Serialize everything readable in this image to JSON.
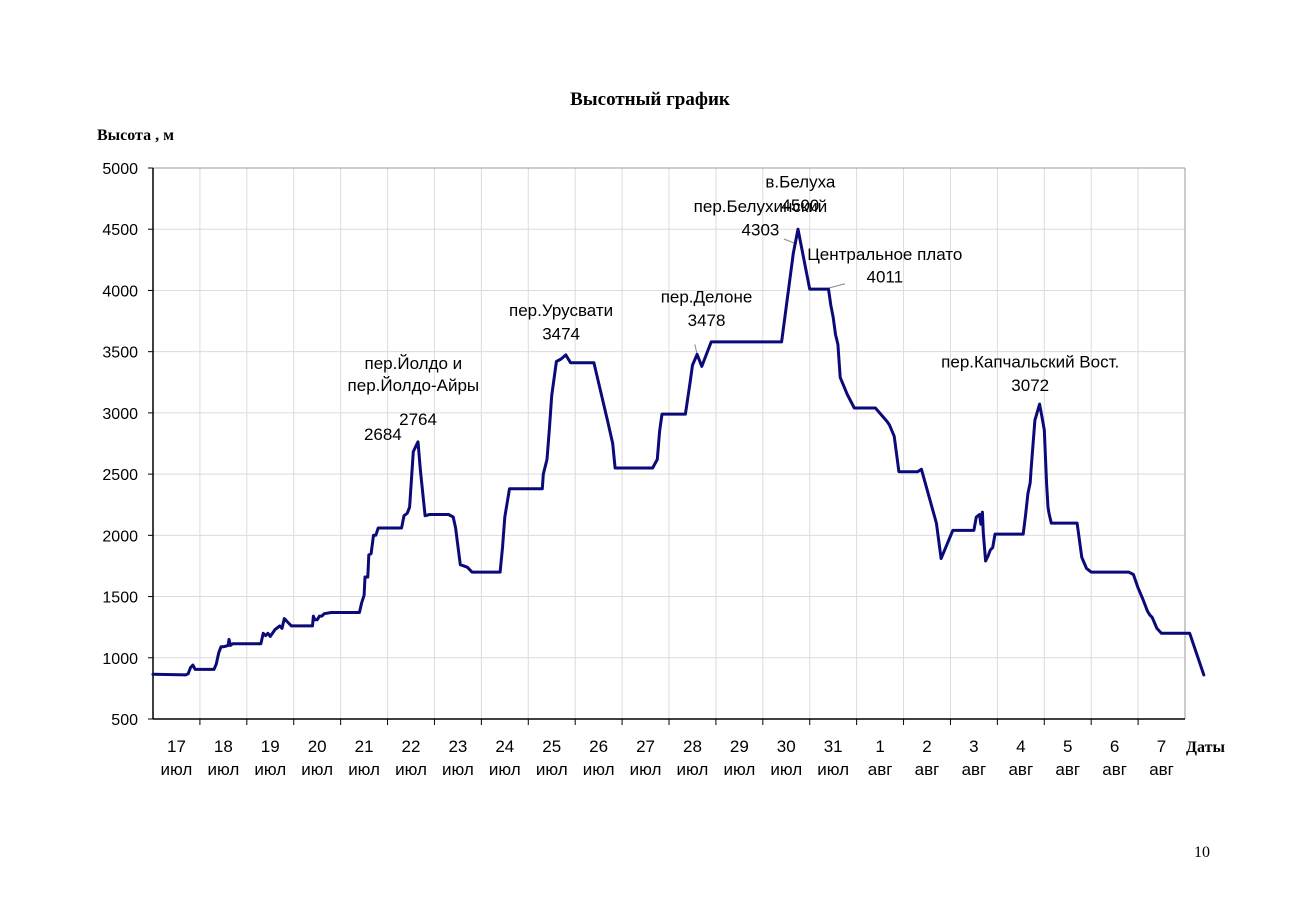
{
  "page_number": "10",
  "chart_data": {
    "type": "line",
    "title": "Высотный график",
    "ylabel": "Высота , м",
    "xlabel": "Даты",
    "ylim": [
      500,
      5000
    ],
    "yticks": [
      "500",
      "1000",
      "1500",
      "2000",
      "2500",
      "3000",
      "3500",
      "4000",
      "4500",
      "5000"
    ],
    "xlim": [
      16.5,
      38.5
    ],
    "grid": true,
    "line_color": "#0a0a78",
    "x_ticks": [
      {
        "day": "17",
        "month": "июл"
      },
      {
        "day": "18",
        "month": "июл"
      },
      {
        "day": "19",
        "month": "июл"
      },
      {
        "day": "20",
        "month": "июл"
      },
      {
        "day": "21",
        "month": "июл"
      },
      {
        "day": "22",
        "month": "июл"
      },
      {
        "day": "23",
        "month": "июл"
      },
      {
        "day": "24",
        "month": "июл"
      },
      {
        "day": "25",
        "month": "июл"
      },
      {
        "day": "26",
        "month": "июл"
      },
      {
        "day": "27",
        "month": "июл"
      },
      {
        "day": "28",
        "month": "июл"
      },
      {
        "day": "29",
        "month": "июл"
      },
      {
        "day": "30",
        "month": "июл"
      },
      {
        "day": "31",
        "month": "июл"
      },
      {
        "day": "1",
        "month": "авг"
      },
      {
        "day": "2",
        "month": "авг"
      },
      {
        "day": "3",
        "month": "авг"
      },
      {
        "day": "4",
        "month": "авг"
      },
      {
        "day": "5",
        "month": "авг"
      },
      {
        "day": "6",
        "month": "авг"
      },
      {
        "day": "7",
        "month": "авг"
      }
    ],
    "series": [
      {
        "values": [
          [
            16.5,
            865
          ],
          [
            17.2,
            860
          ],
          [
            17.25,
            870
          ],
          [
            17.3,
            920
          ],
          [
            17.35,
            940
          ],
          [
            17.4,
            905
          ],
          [
            17.6,
            905
          ],
          [
            17.8,
            905
          ],
          [
            17.85,
            950
          ],
          [
            17.9,
            1040
          ],
          [
            17.95,
            1090
          ],
          [
            18.0,
            1090
          ],
          [
            18.1,
            1100
          ],
          [
            18.12,
            1150
          ],
          [
            18.15,
            1100
          ],
          [
            18.2,
            1115
          ],
          [
            18.8,
            1115
          ],
          [
            18.85,
            1200
          ],
          [
            18.9,
            1180
          ],
          [
            18.95,
            1200
          ],
          [
            19.0,
            1175
          ],
          [
            19.1,
            1230
          ],
          [
            19.2,
            1260
          ],
          [
            19.25,
            1240
          ],
          [
            19.3,
            1320
          ],
          [
            19.4,
            1280
          ],
          [
            19.45,
            1260
          ],
          [
            19.9,
            1260
          ],
          [
            19.92,
            1340
          ],
          [
            19.95,
            1310
          ],
          [
            20.0,
            1310
          ],
          [
            20.05,
            1340
          ],
          [
            20.1,
            1340
          ],
          [
            20.15,
            1360
          ],
          [
            20.3,
            1370
          ],
          [
            20.9,
            1370
          ],
          [
            20.95,
            1450
          ],
          [
            21.0,
            1510
          ],
          [
            21.02,
            1660
          ],
          [
            21.08,
            1660
          ],
          [
            21.1,
            1840
          ],
          [
            21.15,
            1850
          ],
          [
            21.2,
            2000
          ],
          [
            21.25,
            2000
          ],
          [
            21.3,
            2060
          ],
          [
            21.5,
            2060
          ],
          [
            21.7,
            2060
          ],
          [
            21.8,
            2060
          ],
          [
            21.85,
            2160
          ],
          [
            21.92,
            2180
          ],
          [
            21.97,
            2230
          ],
          [
            22.05,
            2684
          ],
          [
            22.15,
            2764
          ],
          [
            22.2,
            2530
          ],
          [
            22.3,
            2160
          ],
          [
            22.4,
            2170
          ],
          [
            22.8,
            2170
          ],
          [
            22.9,
            2150
          ],
          [
            22.95,
            2060
          ],
          [
            23.05,
            1760
          ],
          [
            23.2,
            1740
          ],
          [
            23.3,
            1700
          ],
          [
            23.9,
            1700
          ],
          [
            23.95,
            1900
          ],
          [
            24.0,
            2150
          ],
          [
            24.1,
            2380
          ],
          [
            24.8,
            2380
          ],
          [
            24.82,
            2500
          ],
          [
            24.9,
            2620
          ],
          [
            24.95,
            2870
          ],
          [
            25.0,
            3140
          ],
          [
            25.1,
            3420
          ],
          [
            25.2,
            3440
          ],
          [
            25.3,
            3474
          ],
          [
            25.4,
            3410
          ],
          [
            25.9,
            3410
          ],
          [
            26.2,
            2920
          ],
          [
            26.3,
            2750
          ],
          [
            26.35,
            2550
          ],
          [
            27.15,
            2550
          ],
          [
            27.25,
            2620
          ],
          [
            27.3,
            2850
          ],
          [
            27.35,
            2990
          ],
          [
            27.85,
            2990
          ],
          [
            27.95,
            3250
          ],
          [
            28.0,
            3390
          ],
          [
            28.1,
            3478
          ],
          [
            28.2,
            3380
          ],
          [
            28.4,
            3580
          ],
          [
            29.9,
            3580
          ],
          [
            30.15,
            4303
          ],
          [
            30.25,
            4500
          ],
          [
            30.5,
            4011
          ],
          [
            30.9,
            4011
          ],
          [
            30.95,
            3880
          ],
          [
            31.0,
            3780
          ],
          [
            31.05,
            3640
          ],
          [
            31.1,
            3560
          ],
          [
            31.15,
            3290
          ],
          [
            31.3,
            3150
          ],
          [
            31.45,
            3040
          ],
          [
            31.9,
            3040
          ],
          [
            32.15,
            2930
          ],
          [
            32.2,
            2900
          ],
          [
            32.3,
            2810
          ],
          [
            32.4,
            2520
          ],
          [
            32.8,
            2520
          ],
          [
            32.88,
            2540
          ],
          [
            33.2,
            2100
          ],
          [
            33.3,
            1810
          ],
          [
            33.55,
            2040
          ],
          [
            33.85,
            2040
          ],
          [
            34.0,
            2040
          ],
          [
            34.05,
            2150
          ],
          [
            34.12,
            2170
          ],
          [
            34.15,
            2090
          ],
          [
            34.18,
            2190
          ],
          [
            34.2,
            2020
          ],
          [
            34.25,
            1790
          ],
          [
            34.3,
            1830
          ],
          [
            34.35,
            1880
          ],
          [
            34.4,
            1900
          ],
          [
            34.45,
            2010
          ],
          [
            35.05,
            2010
          ],
          [
            35.1,
            2160
          ],
          [
            35.15,
            2340
          ],
          [
            35.2,
            2430
          ],
          [
            35.22,
            2540
          ],
          [
            35.3,
            2940
          ],
          [
            35.4,
            3072
          ],
          [
            35.45,
            2970
          ],
          [
            35.5,
            2860
          ],
          [
            35.55,
            2420
          ],
          [
            35.58,
            2230
          ],
          [
            35.6,
            2180
          ],
          [
            35.65,
            2100
          ],
          [
            36.2,
            2100
          ],
          [
            36.3,
            1820
          ],
          [
            36.4,
            1730
          ],
          [
            36.5,
            1700
          ],
          [
            37.3,
            1700
          ],
          [
            37.4,
            1680
          ],
          [
            37.5,
            1570
          ],
          [
            37.6,
            1480
          ],
          [
            37.7,
            1380
          ],
          [
            37.75,
            1350
          ],
          [
            37.8,
            1330
          ],
          [
            37.9,
            1240
          ],
          [
            38.0,
            1200
          ],
          [
            38.6,
            1200
          ],
          [
            38.9,
            860
          ]
        ]
      }
    ],
    "annotations": [
      {
        "text": "пер.Йолдо и",
        "x": 22.05,
        "y": 3360
      },
      {
        "text": "пер.Йолдо-Айры",
        "x": 22.05,
        "y": 3180
      },
      {
        "text": "2684",
        "x": 21.4,
        "y": 2780
      },
      {
        "text": "2764",
        "x": 22.15,
        "y": 2900
      },
      {
        "text": "пер.Урусвати",
        "x": 25.2,
        "y": 3790
      },
      {
        "text": "3474",
        "x": 25.2,
        "y": 3600
      },
      {
        "text": "пер.Делоне",
        "x": 28.3,
        "y": 3900
      },
      {
        "text": "3478",
        "x": 28.3,
        "y": 3710
      },
      {
        "text": "пер.Белухинский",
        "x": 29.45,
        "y": 4640
      },
      {
        "text": "4303",
        "x": 29.45,
        "y": 4450
      },
      {
        "text": "в.Белуха",
        "x": 30.3,
        "y": 4840
      },
      {
        "text": "4500",
        "x": 30.3,
        "y": 4650
      },
      {
        "text": "Центральное плато",
        "x": 32.1,
        "y": 4250
      },
      {
        "text": "4011",
        "x": 32.1,
        "y": 4065
      },
      {
        "text": "пер.Капчальский Вост.",
        "x": 35.2,
        "y": 3370
      },
      {
        "text": "3072",
        "x": 35.2,
        "y": 3180
      }
    ]
  }
}
